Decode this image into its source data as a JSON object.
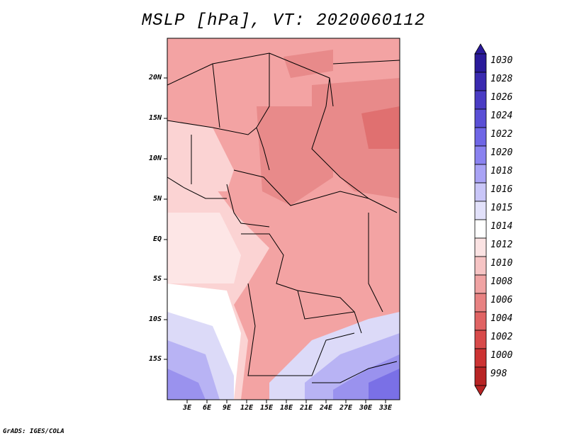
{
  "title": "MSLP [hPa], VT: 2020060112",
  "credit": "GrADS: IGES/COLA",
  "map": {
    "lat_ticks": [
      "20N",
      "15N",
      "10N",
      "5N",
      "EQ",
      "5S",
      "10S",
      "15S"
    ],
    "lon_ticks": [
      "3E",
      "6E",
      "9E",
      "12E",
      "15E",
      "18E",
      "21E",
      "24E",
      "27E",
      "30E",
      "33E"
    ],
    "dominant_pattern": "low pressure north and east, higher pressure southwest and southeast"
  },
  "colorbar": {
    "labels": [
      "1030",
      "1028",
      "1026",
      "1024",
      "1022",
      "1020",
      "1018",
      "1016",
      "1015",
      "1014",
      "1012",
      "1010",
      "1008",
      "1006",
      "1004",
      "1002",
      "1000",
      "998"
    ],
    "colors": [
      "#2a1a9a",
      "#3a2ab0",
      "#4a3cc4",
      "#5a4fd6",
      "#6f66e6",
      "#8a82f0",
      "#a9a3f5",
      "#c9c6f8",
      "#e2e1fa",
      "#ffffff",
      "#fbe3e3",
      "#f6c4c4",
      "#f0a3a3",
      "#e88282",
      "#e06363",
      "#d84a4a",
      "#cc3333",
      "#b82424"
    ]
  }
}
